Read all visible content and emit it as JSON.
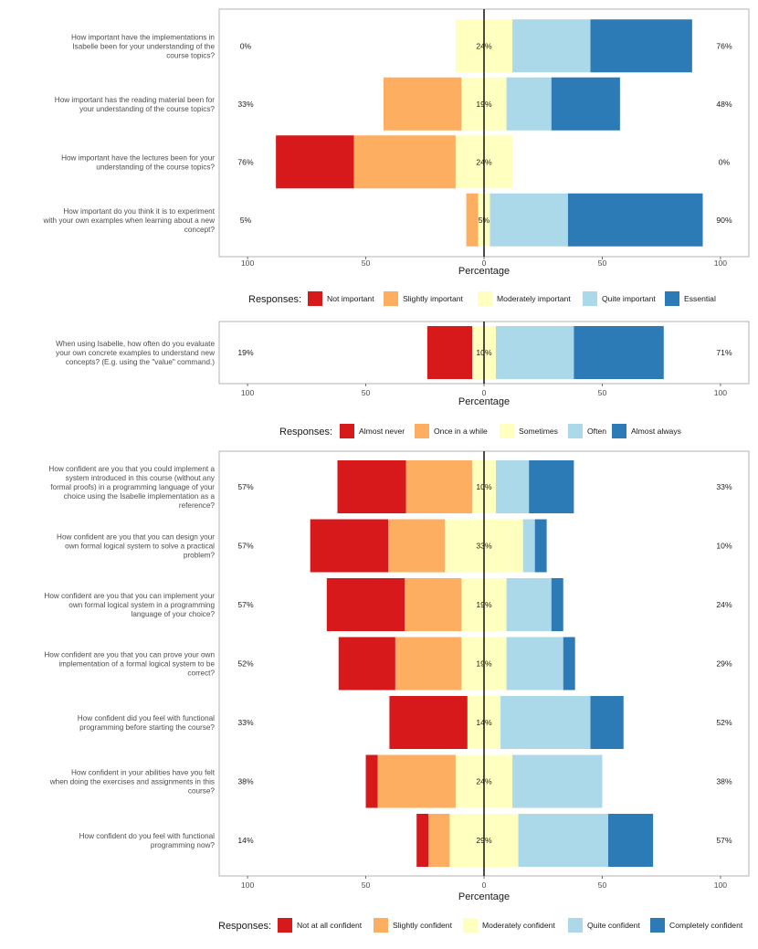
{
  "chart_data": [
    {
      "type": "bar",
      "subtype": "diverging-stacked-likert",
      "xlabel": "Percentage",
      "xlim": [
        -112,
        112
      ],
      "xticks": [
        -100,
        -50,
        0,
        50,
        100
      ],
      "xtick_labels": [
        "100",
        "50",
        "0",
        "50",
        "100"
      ],
      "legend_title": "Responses:",
      "colors": [
        "#d7191c",
        "#fdae61",
        "#ffffbf",
        "#abd9e9",
        "#2c7bb6"
      ],
      "levels": [
        "Not important",
        "Slightly important",
        "Moderately important",
        "Quite important",
        "Essential"
      ],
      "items": [
        {
          "label": [
            "How important have the implementations in",
            "Isabelle been for your understanding of the",
            "course topics?"
          ],
          "values": [
            0,
            0,
            24,
            33,
            43
          ],
          "left_label": "0%",
          "center_label": "24%",
          "right_label": "76%"
        },
        {
          "label": [
            "How important has the reading material been for",
            "your understanding of the course topics?"
          ],
          "values": [
            0,
            33,
            19,
            19,
            29
          ],
          "left_label": "33%",
          "center_label": "19%",
          "right_label": "48%"
        },
        {
          "label": [
            "How important have the lectures been for your",
            "understanding of the course topics?"
          ],
          "values": [
            33,
            43,
            24,
            0,
            0
          ],
          "left_label": "76%",
          "center_label": "24%",
          "right_label": "0%"
        },
        {
          "label": [
            "How important do you think it is to experiment",
            "with your own examples when learning about a new",
            "concept?"
          ],
          "values": [
            0,
            5,
            5,
            33,
            57
          ],
          "left_label": "5%",
          "center_label": "5%",
          "right_label": "90%"
        }
      ]
    },
    {
      "type": "bar",
      "subtype": "diverging-stacked-likert",
      "xlabel": "Percentage",
      "xlim": [
        -112,
        112
      ],
      "xticks": [
        -100,
        -50,
        0,
        50,
        100
      ],
      "xtick_labels": [
        "100",
        "50",
        "0",
        "50",
        "100"
      ],
      "legend_title": "Responses:",
      "colors": [
        "#d7191c",
        "#fdae61",
        "#ffffbf",
        "#abd9e9",
        "#2c7bb6"
      ],
      "levels": [
        "Almost never",
        "Once in a while",
        "Sometimes",
        "Often",
        "Almost always"
      ],
      "items": [
        {
          "label": [
            "When using Isabelle, how often do you evaluate",
            "your own concrete examples to understand new",
            "concepts? (E.g. using the \"value\" command.)"
          ],
          "values": [
            19,
            0,
            10,
            33,
            38
          ],
          "left_label": "19%",
          "center_label": "10%",
          "right_label": "71%"
        }
      ]
    },
    {
      "type": "bar",
      "subtype": "diverging-stacked-likert",
      "xlabel": "Percentage",
      "xlim": [
        -112,
        112
      ],
      "xticks": [
        -100,
        -50,
        0,
        50,
        100
      ],
      "xtick_labels": [
        "100",
        "50",
        "0",
        "50",
        "100"
      ],
      "legend_title": "Responses:",
      "colors": [
        "#d7191c",
        "#fdae61",
        "#ffffbf",
        "#abd9e9",
        "#2c7bb6"
      ],
      "levels": [
        "Not at all confident",
        "Slightly confident",
        "Moderately confident",
        "Quite confident",
        "Completely confident"
      ],
      "items": [
        {
          "label": [
            "How confident are you that you could implement a",
            "system introduced in this course (without any",
            "formal proofs) in a programming language of your",
            "choice using the Isabelle implementation as a",
            "reference?"
          ],
          "values": [
            29,
            28,
            10,
            14,
            19
          ],
          "left_label": "57%",
          "center_label": "10%",
          "right_label": "33%"
        },
        {
          "label": [
            "How confident are you that you can design your",
            "own formal logical system to solve a practical",
            "problem?"
          ],
          "values": [
            33,
            24,
            33,
            5,
            5
          ],
          "left_label": "57%",
          "center_label": "33%",
          "right_label": "10%"
        },
        {
          "label": [
            "How confident are you that you can implement your",
            "own formal logical system in a programming",
            "language of your choice?"
          ],
          "values": [
            33,
            24,
            19,
            19,
            5
          ],
          "left_label": "57%",
          "center_label": "19%",
          "right_label": "24%"
        },
        {
          "label": [
            "How confident are you that you can prove your own",
            "implementation of a formal logical system to be",
            "correct?"
          ],
          "values": [
            24,
            28,
            19,
            24,
            5
          ],
          "left_label": "52%",
          "center_label": "19%",
          "right_label": "29%"
        },
        {
          "label": [
            "How confident did you feel with functional",
            "programming before starting the course?"
          ],
          "values": [
            33,
            0,
            14,
            38,
            14
          ],
          "left_label": "33%",
          "center_label": "14%",
          "right_label": "52%"
        },
        {
          "label": [
            "How confident in your abilities have you felt",
            "when doing the exercises and assignments in this",
            "course?"
          ],
          "values": [
            5,
            33,
            24,
            38,
            0
          ],
          "left_label": "38%",
          "center_label": "24%",
          "right_label": "38%"
        },
        {
          "label": [
            "How confident do you feel with functional",
            "programming now?"
          ],
          "values": [
            5,
            9,
            29,
            38,
            19
          ],
          "left_label": "14%",
          "center_label": "29%",
          "right_label": "57%"
        }
      ]
    }
  ]
}
